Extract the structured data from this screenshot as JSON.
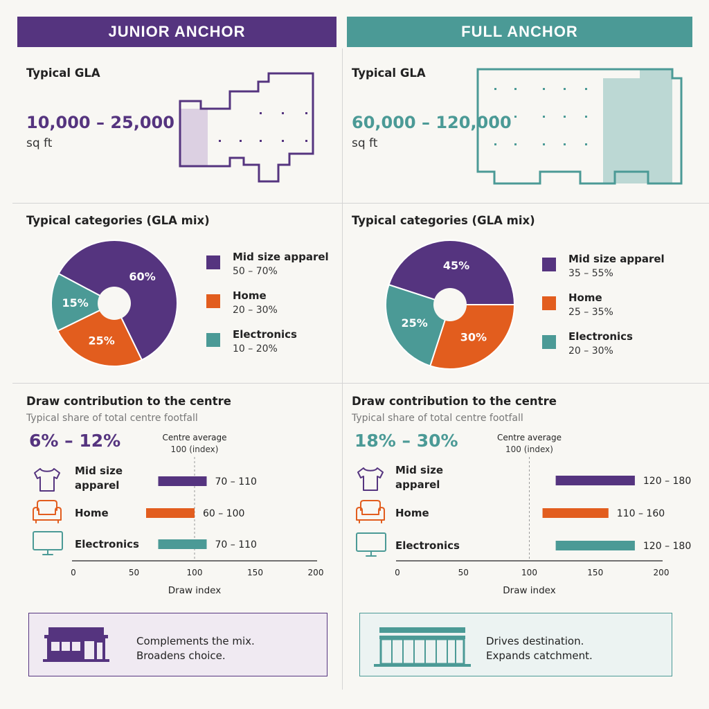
{
  "colors": {
    "purple": "#55347f",
    "orange": "#e25d1e",
    "teal": "#4b9a96",
    "purple_light": "#dcd0e2",
    "teal_light": "#bcd8d4",
    "footer_purple_bg": "#f0eaf2",
    "footer_teal_bg": "#ecf3f2"
  },
  "panels": [
    {
      "header": "JUNIOR ANCHOR",
      "gla": {
        "title": "Typical GLA",
        "value": "10,000 – 25,000",
        "unit": "sq ft"
      },
      "categories_title": "Typical categories (GLA mix)",
      "draw": {
        "title": "Draw contribution to the centre",
        "subtitle": "Typical share of total centre footfall",
        "share": "6% – 12%"
      },
      "footer": {
        "line1": "Complements the mix.",
        "line2": "Broadens choice.",
        "icon": "small-storefront-icon"
      }
    },
    {
      "header": "FULL ANCHOR",
      "gla": {
        "title": "Typical GLA",
        "value": "60,000 – 120,000",
        "unit": "sq ft"
      },
      "categories_title": "Typical categories (GLA mix)",
      "draw": {
        "title": "Draw contribution to the centre",
        "subtitle": "Typical share of total centre footfall",
        "share": "18% – 30%"
      },
      "footer": {
        "line1": "Drives destination.",
        "line2": "Expands catchment.",
        "icon": "large-storefront-icon"
      }
    }
  ],
  "chart_data": [
    {
      "type": "pie",
      "title": "Typical categories (GLA mix)",
      "panel": "JUNIOR ANCHOR",
      "slices": [
        {
          "label": "Mid size apparel",
          "value": 60,
          "value_label": "60%",
          "range": "50 – 70%",
          "color": "#55347f"
        },
        {
          "label": "Home",
          "value": 25,
          "value_label": "25%",
          "range": "20 – 30%",
          "color": "#e25d1e"
        },
        {
          "label": "Electronics",
          "value": 15,
          "value_label": "15%",
          "range": "10 – 20%",
          "color": "#4b9a96"
        }
      ]
    },
    {
      "type": "pie",
      "title": "Typical categories (GLA mix)",
      "panel": "FULL ANCHOR",
      "slices": [
        {
          "label": "Mid size apparel",
          "value": 45,
          "value_label": "45%",
          "range": "35 – 55%",
          "color": "#55347f"
        },
        {
          "label": "Home",
          "value": 30,
          "value_label": "30%",
          "range": "25 – 35%",
          "color": "#e25d1e"
        },
        {
          "label": "Electronics",
          "value": 25,
          "value_label": "25%",
          "range": "20 – 30%",
          "color": "#4b9a96"
        }
      ]
    },
    {
      "type": "bar",
      "orientation": "horizontal",
      "title": "Draw contribution to the centre",
      "panel": "JUNIOR ANCHOR",
      "categories": [
        "Mid size apparel",
        "Home",
        "Electronics"
      ],
      "category_lines": [
        [
          "Mid size",
          "apparel"
        ],
        [
          "Home"
        ],
        [
          "Electronics"
        ]
      ],
      "icons": [
        "tshirt-icon",
        "sofa-icon",
        "monitor-icon"
      ],
      "ranges": [
        [
          70,
          110
        ],
        [
          60,
          100
        ],
        [
          70,
          110
        ]
      ],
      "range_labels": [
        "70 – 110",
        "60 – 100",
        "70 – 110"
      ],
      "colors": [
        "#55347f",
        "#e25d1e",
        "#4b9a96"
      ],
      "xlim": [
        0,
        200
      ],
      "xticks": [
        0,
        50,
        100,
        150,
        200
      ],
      "xlabel": "Draw index",
      "reference": {
        "value": 100,
        "label_line1": "Centre average",
        "label_line2": "100 (index)"
      }
    },
    {
      "type": "bar",
      "orientation": "horizontal",
      "title": "Draw contribution to the centre",
      "panel": "FULL ANCHOR",
      "categories": [
        "Mid size apparel",
        "Home",
        "Electronics"
      ],
      "category_lines": [
        [
          "Mid size",
          "apparel"
        ],
        [
          "Home"
        ],
        [
          "Electronics"
        ]
      ],
      "icons": [
        "tshirt-icon",
        "sofa-icon",
        "monitor-icon"
      ],
      "ranges": [
        [
          120,
          180
        ],
        [
          110,
          160
        ],
        [
          120,
          180
        ]
      ],
      "range_labels": [
        "120 – 180",
        "110 – 160",
        "120 – 180"
      ],
      "colors": [
        "#55347f",
        "#e25d1e",
        "#4b9a96"
      ],
      "xlim": [
        0,
        200
      ],
      "xticks": [
        0,
        50,
        100,
        150,
        200
      ],
      "xlabel": "Draw index",
      "reference": {
        "value": 100,
        "label_line1": "Centre average",
        "label_line2": "100 (index)"
      }
    }
  ]
}
